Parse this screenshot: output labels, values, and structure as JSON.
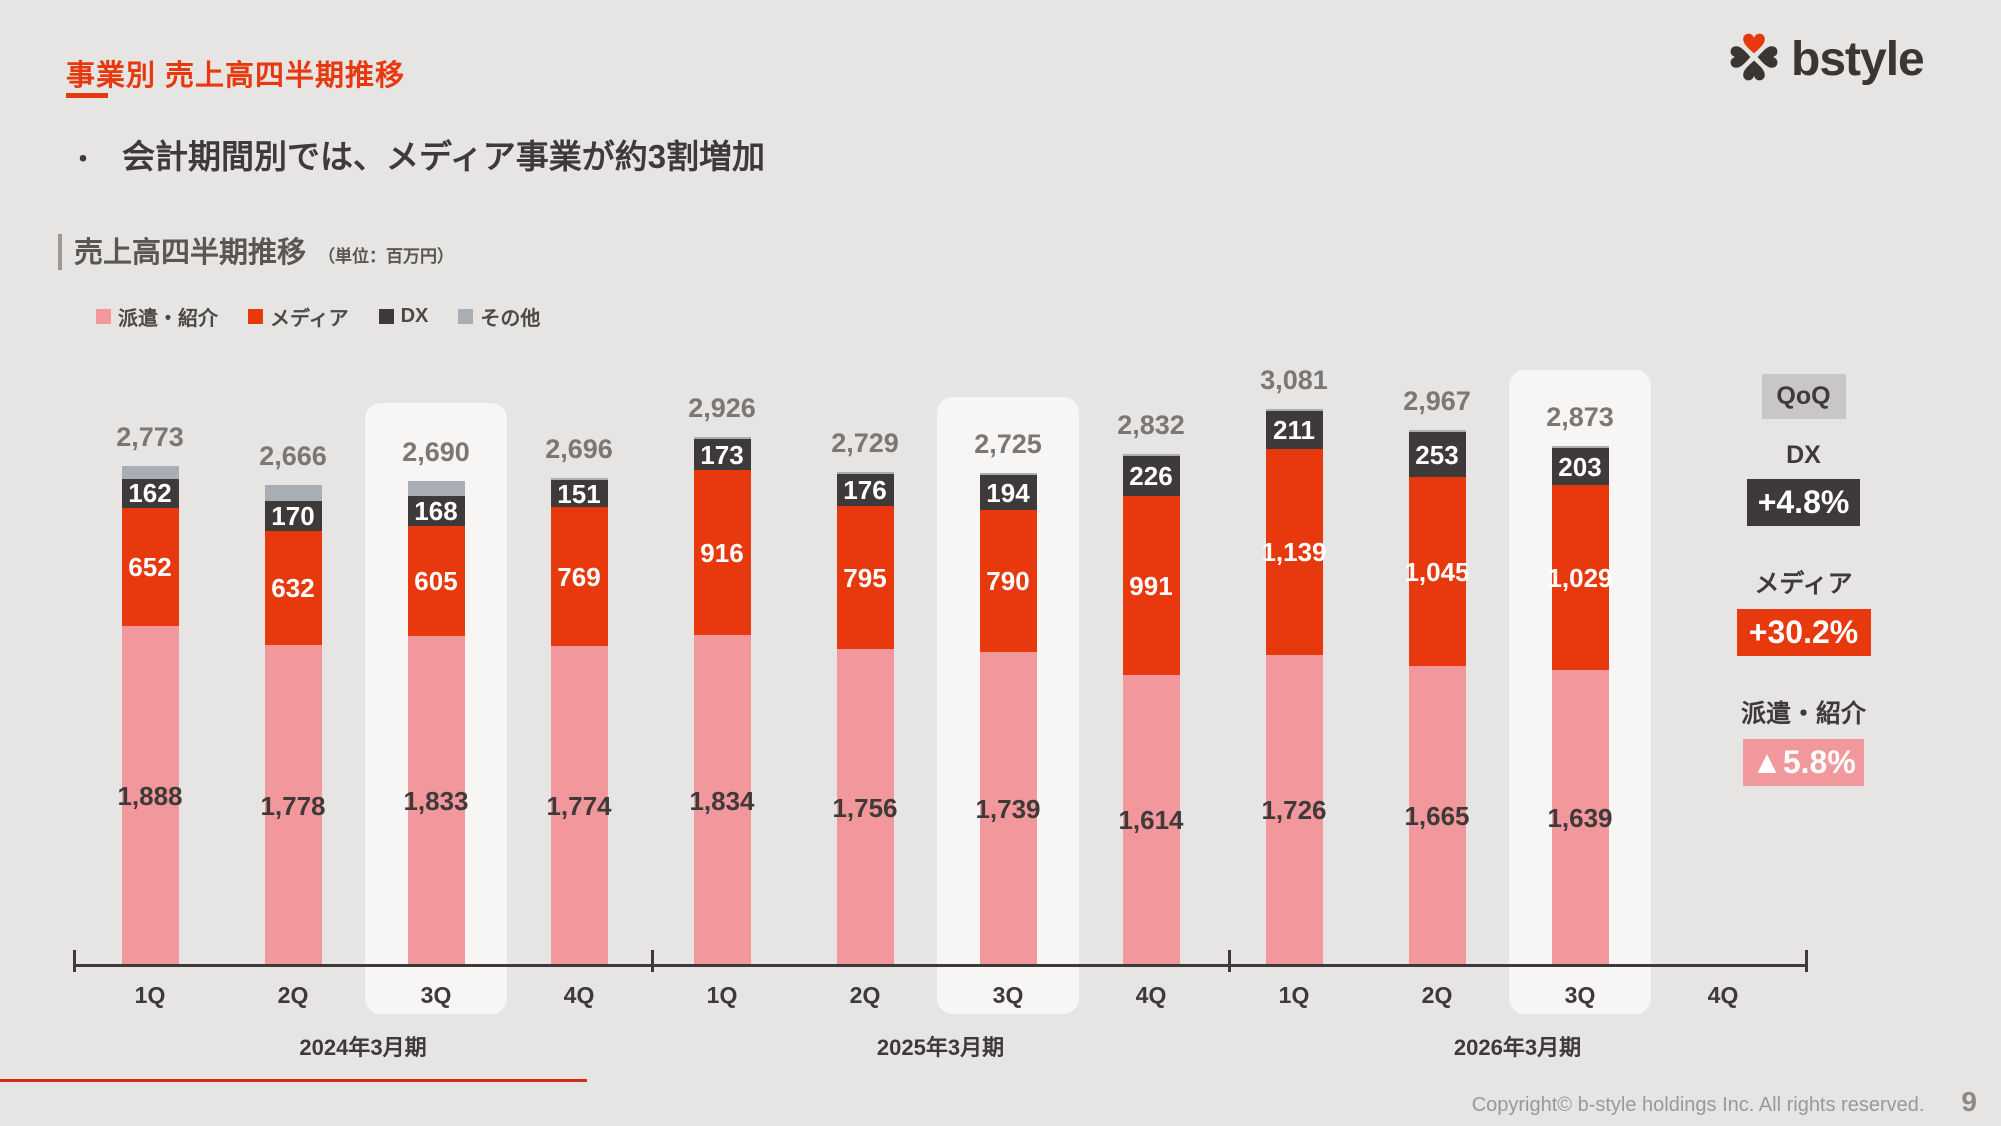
{
  "page": {
    "title": "事業別 売上高四半期推移",
    "bullet_marker": "・",
    "bullet_text": "会計期間別では、メディア事業が約3割増加",
    "section_title": "売上高四半期推移",
    "unit_note": "（単位：百万円）",
    "logo_text": "bstyle",
    "footer_copyright": "Copyright© b-style holdings Inc. All rights reserved.",
    "page_number": "9"
  },
  "colors": {
    "background": "#e6e5e3",
    "accent_red": "#e8380d",
    "pink": "#f2989c",
    "dark": "#3d3a39",
    "other_gray": "#a9aeb4",
    "highlight_column": "#f7f6f4",
    "total_label_gray": "#7a7775",
    "qoq_pink_box": "#f0989c"
  },
  "chart_data": {
    "type": "bar",
    "stacked": true,
    "unit": "百万円",
    "categories": [
      "1Q",
      "2Q",
      "3Q",
      "4Q",
      "1Q",
      "2Q",
      "3Q",
      "4Q",
      "1Q",
      "2Q",
      "3Q",
      "4Q"
    ],
    "year_labels": [
      "2024年3月期",
      "2025年3月期",
      "2026年3月期"
    ],
    "series": [
      {
        "name": "派遣・紹介",
        "color": "#f2989c",
        "label_color": "#3d3a39",
        "show_labels": true,
        "values": [
          1888,
          1778,
          1833,
          1774,
          1834,
          1756,
          1739,
          1614,
          1726,
          1665,
          1639,
          null
        ]
      },
      {
        "name": "メディア",
        "color": "#e8380d",
        "label_color": "#ffffff",
        "show_labels": true,
        "values": [
          652,
          632,
          605,
          769,
          916,
          795,
          790,
          991,
          1139,
          1045,
          1029,
          null
        ]
      },
      {
        "name": "DX",
        "color": "#3d3a39",
        "label_color": "#ffffff",
        "show_labels": true,
        "values": [
          162,
          170,
          168,
          151,
          173,
          176,
          194,
          226,
          211,
          253,
          203,
          null
        ]
      },
      {
        "name": "その他",
        "color": "#a9aeb4",
        "label_color": null,
        "show_labels": false,
        "values": [
          71,
          86,
          84,
          2,
          3,
          2,
          2,
          1,
          5,
          4,
          2,
          null
        ]
      }
    ],
    "totals": [
      2773,
      2666,
      2690,
      2696,
      2926,
      2729,
      2725,
      2832,
      3081,
      2967,
      2873,
      null
    ],
    "highlighted_indices": [
      2,
      6,
      10
    ],
    "legend_position": "top-left"
  },
  "qoq": {
    "title": "QoQ",
    "items": [
      {
        "label": "DX",
        "value": "+4.8%",
        "style": "dark"
      },
      {
        "label": "メディア",
        "value": "+30.2%",
        "style": "red"
      },
      {
        "label": "派遣・紹介",
        "value": "▲5.8%",
        "style": "pink"
      }
    ]
  }
}
